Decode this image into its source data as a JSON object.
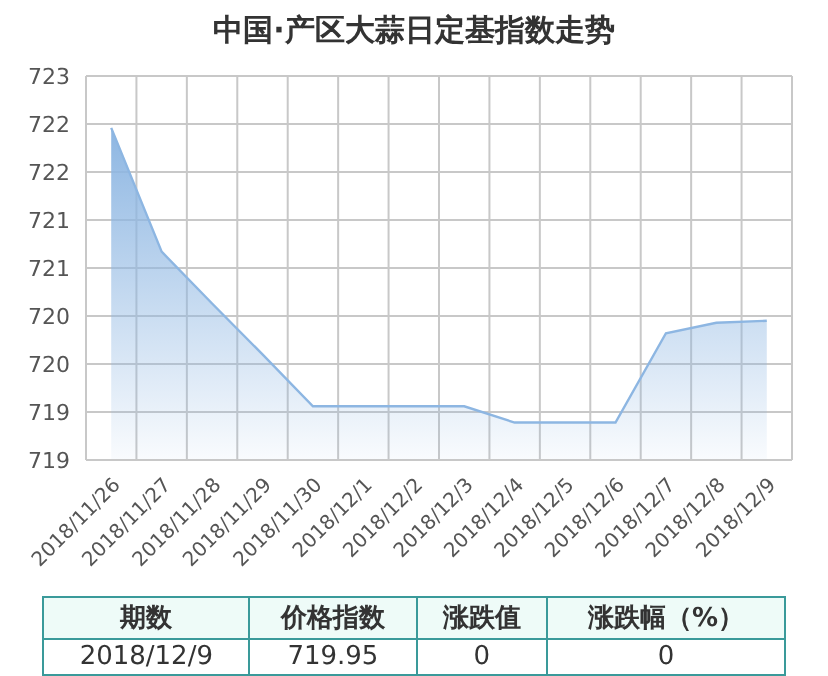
{
  "chart_data": {
    "type": "area",
    "title": "中国·产区大蒜日定基指数走势",
    "categories": [
      "2018/11/26",
      "2018/11/27",
      "2018/11/28",
      "2018/11/29",
      "2018/11/30",
      "2018/12/1",
      "2018/12/2",
      "2018/12/3",
      "2018/12/4",
      "2018/12/5",
      "2018/12/6",
      "2018/12/7",
      "2018/12/8",
      "2018/12/9"
    ],
    "series": [
      {
        "color": "#8db6e2",
        "values": [
          721.96,
          720.67,
          720.13,
          719.6,
          719.06,
          719.06,
          719.06,
          719.06,
          718.89,
          718.89,
          718.89,
          719.82,
          719.93,
          719.95
        ]
      }
    ],
    "ylim": [
      718.5,
      722.5
    ],
    "yticks": [
      {
        "value": 718.5,
        "label": "719"
      },
      {
        "value": 719,
        "label": "719"
      },
      {
        "value": 719.5,
        "label": "720"
      },
      {
        "value": 720,
        "label": "720"
      },
      {
        "value": 720.5,
        "label": "721"
      },
      {
        "value": 721,
        "label": "721"
      },
      {
        "value": 721.5,
        "label": "722"
      },
      {
        "value": 722,
        "label": "722"
      },
      {
        "value": 722.5,
        "label": "723"
      }
    ],
    "grid": true,
    "annotations": [
      "期数",
      "价格指数",
      "涨跌值",
      "涨跌幅（%）",
      "2018/12/9",
      "719.95",
      "0",
      "0"
    ]
  }
}
